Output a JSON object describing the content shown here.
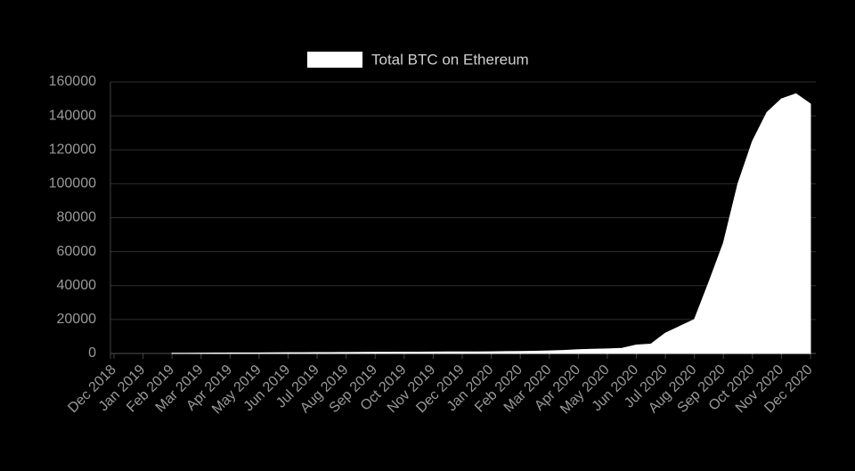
{
  "chart_data": {
    "type": "area",
    "title": null,
    "series": [
      {
        "name": "Total BTC on Ethereum",
        "color": "#ffffff",
        "values": [
          null,
          null,
          null,
          null,
          100,
          150,
          200,
          250,
          300,
          300,
          350,
          400,
          450,
          450,
          500,
          550,
          600,
          650,
          700,
          750,
          800,
          800,
          850,
          900,
          900,
          950,
          1000,
          1100,
          1200,
          1300,
          1500,
          1800,
          2200,
          2500,
          2700,
          3000,
          5000,
          5500,
          12000,
          16000,
          20000,
          42000,
          65000,
          100000,
          125000,
          142000,
          150000,
          153000,
          147000
        ]
      }
    ],
    "categories": [
      "Dec 2018",
      null,
      "Jan 2019",
      null,
      "Feb 2019",
      null,
      "Mar 2019",
      null,
      "Apr 2019",
      null,
      "May 2019",
      null,
      "Jun 2019",
      null,
      "Jul 2019",
      null,
      "Aug 2019",
      null,
      "Sep 2019",
      null,
      "Oct 2019",
      null,
      "Nov 2019",
      null,
      "Dec 2019",
      null,
      "Jan 2020",
      null,
      "Feb 2020",
      null,
      "Mar 2020",
      null,
      "Apr 2020",
      null,
      "May 2020",
      null,
      "Jun 2020",
      null,
      "Jul 2020",
      null,
      "Aug 2020",
      null,
      "Sep 2020",
      null,
      "Oct 2020",
      null,
      "Nov 2020",
      null,
      "Dec 2020"
    ],
    "ylim": [
      0,
      160000
    ],
    "yticks": [
      0,
      20000,
      40000,
      60000,
      80000,
      100000,
      120000,
      140000,
      160000
    ],
    "grid": true,
    "legend": "top"
  }
}
